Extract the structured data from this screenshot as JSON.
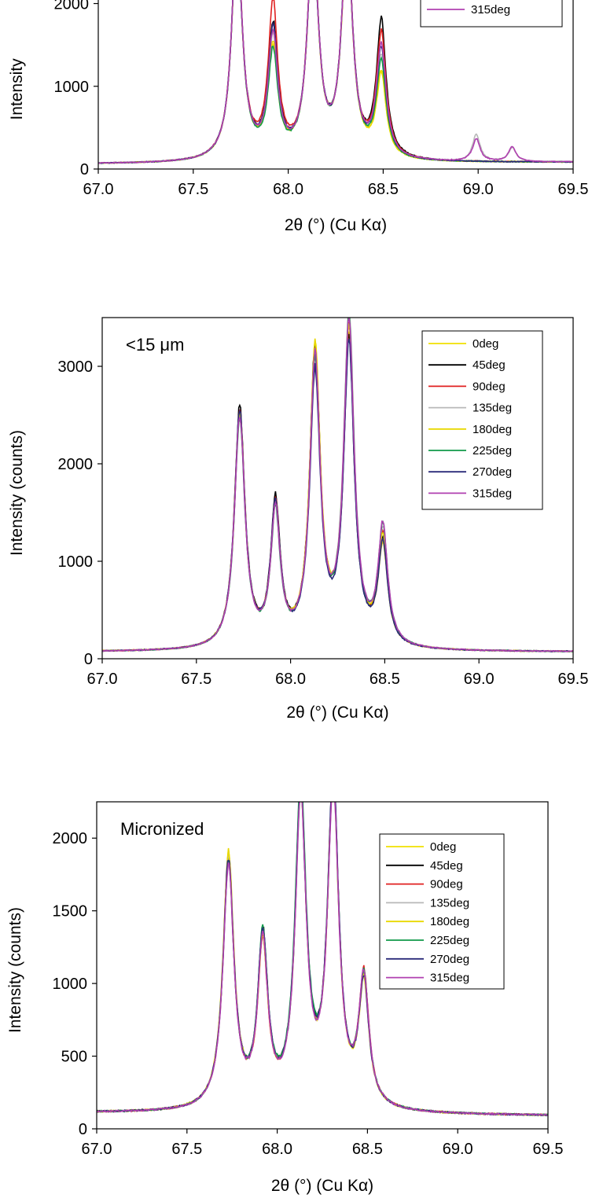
{
  "chart_data": [
    {
      "type": "line",
      "panel_label": "",
      "ylabel": "Intensity",
      "xlabel": "2θ (°) (Cu Kα)",
      "xlim": [
        67.0,
        69.5
      ],
      "ylim": [
        0,
        2100
      ],
      "x_ticks": [
        "67.0",
        "67.5",
        "68.0",
        "68.5",
        "69.0",
        "69.5"
      ],
      "y_ticks": [
        "0",
        "1000",
        "2000"
      ],
      "legend_position": "top-right",
      "peaks": [
        {
          "x": 67.73,
          "w": 0.05
        },
        {
          "x": 67.92,
          "w": 0.045
        },
        {
          "x": 68.13,
          "w": 0.05
        },
        {
          "x": 68.31,
          "w": 0.05
        },
        {
          "x": 68.49,
          "w": 0.045
        },
        {
          "x": 68.99,
          "w": 0.035
        },
        {
          "x": 69.18,
          "w": 0.035
        }
      ],
      "series": [
        {
          "name": "",
          "color": "#f0e000",
          "baseline": [
            60,
            80
          ],
          "amps": [
            2700,
            1280,
            2700,
            2700,
            980,
            0,
            0
          ]
        },
        {
          "name": "",
          "color": "#000000",
          "baseline": [
            60,
            80
          ],
          "amps": [
            2700,
            1560,
            2700,
            2700,
            1640,
            0,
            0
          ]
        },
        {
          "name": "",
          "color": "#e02020",
          "baseline": [
            60,
            80
          ],
          "amps": [
            2700,
            1830,
            2700,
            2700,
            1480,
            0,
            0
          ]
        },
        {
          "name": "",
          "color": "#b8b8b8",
          "baseline": [
            60,
            80
          ],
          "amps": [
            2700,
            1400,
            2700,
            2700,
            1200,
            330,
            170
          ]
        },
        {
          "name": "",
          "color": "#e8d800",
          "baseline": [
            60,
            80
          ],
          "amps": [
            2700,
            1320,
            2700,
            2700,
            1000,
            0,
            0
          ]
        },
        {
          "name": "",
          "color": "#119a4a",
          "baseline": [
            60,
            80
          ],
          "amps": [
            2700,
            1250,
            2700,
            2700,
            1140,
            0,
            0
          ]
        },
        {
          "name": "",
          "color": "#2b2b7a",
          "baseline": [
            60,
            80
          ],
          "amps": [
            2700,
            1530,
            2700,
            2700,
            1300,
            0,
            0
          ]
        },
        {
          "name": "315deg",
          "color": "#b040b0",
          "baseline": [
            60,
            80
          ],
          "amps": [
            2700,
            1460,
            2700,
            2700,
            1350,
            270,
            180
          ]
        }
      ]
    },
    {
      "type": "line",
      "panel_label": "<15 μm",
      "ylabel": "Intensity (counts)",
      "xlabel": "2θ (°) (Cu Kα)",
      "xlim": [
        67.0,
        69.5
      ],
      "ylim": [
        0,
        3500
      ],
      "x_ticks": [
        "67.0",
        "67.5",
        "68.0",
        "68.5",
        "69.0",
        "69.5"
      ],
      "y_ticks": [
        "0",
        "1000",
        "2000",
        "3000"
      ],
      "legend_position": "top-right",
      "peaks": [
        {
          "x": 67.73,
          "w": 0.05
        },
        {
          "x": 67.92,
          "w": 0.045
        },
        {
          "x": 68.13,
          "w": 0.05
        },
        {
          "x": 68.31,
          "w": 0.05
        },
        {
          "x": 68.49,
          "w": 0.045
        }
      ],
      "series": [
        {
          "name": "0deg",
          "color": "#f0e000",
          "baseline": [
            70,
            70
          ],
          "amps": [
            2380,
            1360,
            3060,
            3160,
            1000
          ]
        },
        {
          "name": "45deg",
          "color": "#000000",
          "baseline": [
            70,
            70
          ],
          "amps": [
            2460,
            1450,
            3010,
            3080,
            1050
          ]
        },
        {
          "name": "90deg",
          "color": "#e02020",
          "baseline": [
            70,
            70
          ],
          "amps": [
            2400,
            1400,
            2950,
            3200,
            1100
          ]
        },
        {
          "name": "135deg",
          "color": "#b8b8b8",
          "baseline": [
            70,
            70
          ],
          "amps": [
            2370,
            1380,
            2900,
            3390,
            1150
          ]
        },
        {
          "name": "180deg",
          "color": "#e8d800",
          "baseline": [
            70,
            70
          ],
          "amps": [
            2390,
            1370,
            3030,
            3250,
            1080
          ]
        },
        {
          "name": "225deg",
          "color": "#119a4a",
          "baseline": [
            70,
            70
          ],
          "amps": [
            2350,
            1330,
            2850,
            3300,
            1200
          ]
        },
        {
          "name": "270deg",
          "color": "#2b2b7a",
          "baseline": [
            70,
            70
          ],
          "amps": [
            2420,
            1420,
            2780,
            3060,
            1020
          ]
        },
        {
          "name": "315deg",
          "color": "#b040b0",
          "baseline": [
            70,
            70
          ],
          "amps": [
            2360,
            1350,
            2920,
            3290,
            1210
          ]
        }
      ]
    },
    {
      "type": "line",
      "panel_label": "Micronized",
      "ylabel": "Intensity (counts)",
      "xlabel": "2θ (°) (Cu Kα)",
      "xlim": [
        67.0,
        69.5
      ],
      "ylim": [
        0,
        2250
      ],
      "x_ticks": [
        "67.0",
        "67.5",
        "68.0",
        "68.5",
        "69.0",
        "69.5"
      ],
      "y_ticks": [
        "0",
        "500",
        "1000",
        "1500",
        "2000"
      ],
      "legend_position": "top-right",
      "peaks": [
        {
          "x": 67.73,
          "w": 0.055
        },
        {
          "x": 67.92,
          "w": 0.05
        },
        {
          "x": 68.13,
          "w": 0.055
        },
        {
          "x": 68.31,
          "w": 0.055
        },
        {
          "x": 68.48,
          "w": 0.05
        }
      ],
      "series": [
        {
          "name": "0deg",
          "color": "#f0e000",
          "baseline": [
            110,
            90
          ],
          "amps": [
            1730,
            1100,
            2100,
            2200,
            830
          ]
        },
        {
          "name": "45deg",
          "color": "#000000",
          "baseline": [
            110,
            90
          ],
          "amps": [
            1700,
            1150,
            2150,
            2240,
            850
          ]
        },
        {
          "name": "90deg",
          "color": "#e02020",
          "baseline": [
            110,
            90
          ],
          "amps": [
            1690,
            1080,
            2120,
            2210,
            880
          ]
        },
        {
          "name": "135deg",
          "color": "#b8b8b8",
          "baseline": [
            110,
            90
          ],
          "amps": [
            1710,
            1120,
            2080,
            2190,
            840
          ]
        },
        {
          "name": "180deg",
          "color": "#e8d800",
          "baseline": [
            110,
            90
          ],
          "amps": [
            1740,
            1090,
            2110,
            2200,
            820
          ]
        },
        {
          "name": "225deg",
          "color": "#119a4a",
          "baseline": [
            110,
            90
          ],
          "amps": [
            1680,
            1140,
            2220,
            2230,
            860
          ]
        },
        {
          "name": "270deg",
          "color": "#2b2b7a",
          "baseline": [
            110,
            90
          ],
          "amps": [
            1700,
            1130,
            2090,
            2250,
            830
          ]
        },
        {
          "name": "315deg",
          "color": "#b040b0",
          "baseline": [
            110,
            90
          ],
          "amps": [
            1660,
            1100,
            2070,
            2180,
            870
          ]
        }
      ]
    }
  ]
}
